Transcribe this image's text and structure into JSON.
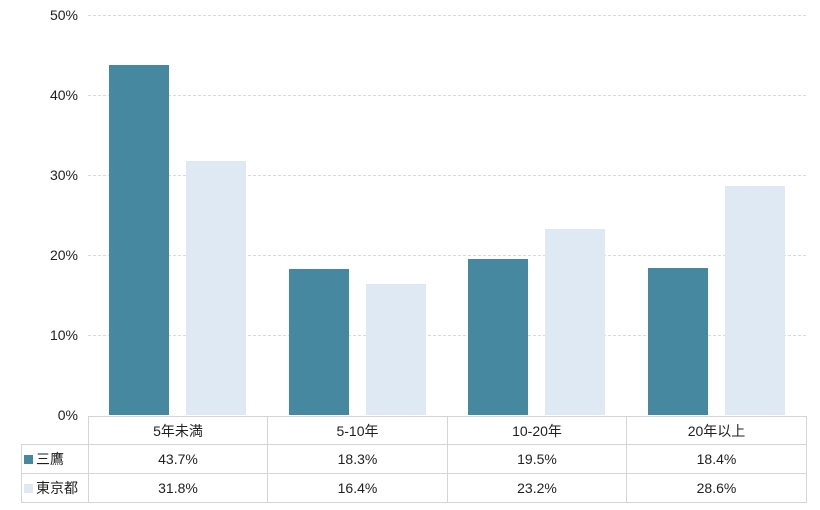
{
  "chart_data": {
    "type": "bar",
    "title": "",
    "categories": [
      "5年未満",
      "5-10年",
      "10-20年",
      "20年以上"
    ],
    "series": [
      {
        "name": "三鷹",
        "color": "#45889f",
        "values": [
          43.7,
          18.3,
          19.5,
          18.4
        ]
      },
      {
        "name": "東京都",
        "color": "#dee9f3",
        "values": [
          31.8,
          16.4,
          23.2,
          28.6
        ]
      }
    ],
    "xlabel": "",
    "ylabel": "",
    "ylim": [
      0,
      50
    ],
    "ytick_step": 10,
    "ytick_labels": [
      "0%",
      "10%",
      "20%",
      "30%",
      "40%",
      "50%"
    ],
    "value_suffix": "%",
    "grid": "horizontal-dashed",
    "legend_position": "table-row-headers",
    "table_values": [
      [
        "43.7%",
        "18.3%",
        "19.5%",
        "18.4%"
      ],
      [
        "31.8%",
        "16.4%",
        "23.2%",
        "28.6%"
      ]
    ]
  },
  "colors": {
    "background": "#ffffff",
    "gridline": "#d9d9d9",
    "table_border": "#d5d5d5",
    "text": "#1f1f1f"
  }
}
